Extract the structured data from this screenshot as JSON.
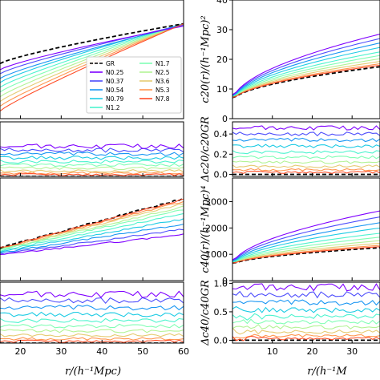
{
  "chart_data": {
    "type": "line",
    "panels": [
      {
        "id": "xi0",
        "column": "left",
        "xlim": [
          15,
          60
        ],
        "ylim": [
          0,
          1
        ],
        "yticks": [],
        "ylabel": ""
      },
      {
        "id": "xi0_ratio",
        "column": "left",
        "xlim": [
          15,
          60
        ],
        "ylim": [
          0,
          1
        ],
        "yticks": [],
        "ylabel": ""
      },
      {
        "id": "xi2",
        "column": "left",
        "xlim": [
          15,
          60
        ],
        "ylim": [
          0,
          1
        ],
        "yticks": [],
        "ylabel": ""
      },
      {
        "id": "xi2_ratio",
        "column": "left",
        "xlim": [
          15,
          60
        ],
        "ylim": [
          0,
          1
        ],
        "yticks": [],
        "ylabel": ""
      },
      {
        "id": "c20",
        "column": "right",
        "xlim": [
          0,
          37
        ],
        "ylim": [
          0,
          40
        ],
        "yticks": [
          "0",
          "10",
          "20",
          "30",
          "40"
        ],
        "ylabel": "c20(r)/(h⁻¹Mpc)²"
      },
      {
        "id": "c20_ratio",
        "column": "right",
        "xlim": [
          0,
          37
        ],
        "ylim": [
          -0.02,
          0.52
        ],
        "yticks": [
          "0.0",
          "0.2",
          "0.4"
        ],
        "ylabel": "Δc20/c20GR"
      },
      {
        "id": "c40",
        "column": "right",
        "xlim": [
          0,
          37
        ],
        "ylim": [
          0,
          3900
        ],
        "yticks": [
          "0",
          "1000",
          "2000",
          "3000"
        ],
        "ylabel": "c40(r)/(h⁻¹Mpc)⁴"
      },
      {
        "id": "c40_ratio",
        "column": "right",
        "xlim": [
          0,
          37
        ],
        "ylim": [
          -0.05,
          1.02
        ],
        "yticks": [
          "0.0",
          "0.5",
          "1.0"
        ],
        "ylabel": "Δc40/c40GR"
      }
    ],
    "x_ticks_left": [
      "20",
      "30",
      "40",
      "50",
      "60"
    ],
    "x_ticks_right": [
      "10",
      "20",
      "30"
    ],
    "xlabel_left": "r/(h⁻¹Mpc)",
    "xlabel_right": "r/(h⁻¹M",
    "legend": {
      "placement": "top-panel-left-column-right",
      "entries": [
        "GR",
        "N0.25",
        "N0.37",
        "N0.54",
        "N0.79",
        "N1.2",
        "N1.7",
        "N2.5",
        "N3.6",
        "N5.3",
        "N7.8"
      ]
    },
    "series": [
      {
        "name": "GR",
        "color": "#000000",
        "dashed": true,
        "xi0_end": 0.8,
        "xi0_ratio": 0.0,
        "xi2_end": 0.8,
        "xi2_ratio": 0.0,
        "c20_end": 17.5,
        "c20_ratio": 0.0,
        "c40_end": 1250,
        "c40_ratio": 0.0
      },
      {
        "name": "N0.25",
        "color": "#7f00ff",
        "dashed": false,
        "xi0_end": 0.78,
        "xi0_ratio": 0.55,
        "xi2_end": 0.45,
        "xi2_ratio": 0.8,
        "c20_end": 28.5,
        "c20_ratio": 0.46,
        "c40_end": 2650,
        "c40_ratio": 0.93
      },
      {
        "name": "N0.37",
        "color": "#4d4dfc",
        "dashed": false,
        "xi0_end": 0.79,
        "xi0_ratio": 0.48,
        "xi2_end": 0.5,
        "xi2_ratio": 0.7,
        "c20_end": 27.0,
        "c20_ratio": 0.4,
        "c40_end": 2420,
        "c40_ratio": 0.8
      },
      {
        "name": "N0.54",
        "color": "#1996f3",
        "dashed": false,
        "xi0_end": 0.79,
        "xi0_ratio": 0.41,
        "xi2_end": 0.55,
        "xi2_ratio": 0.58,
        "c20_end": 25.5,
        "c20_ratio": 0.34,
        "c40_end": 2200,
        "c40_ratio": 0.66
      },
      {
        "name": "N0.79",
        "color": "#1dcbe4",
        "dashed": false,
        "xi0_end": 0.8,
        "xi0_ratio": 0.34,
        "xi2_end": 0.6,
        "xi2_ratio": 0.47,
        "c20_end": 24.0,
        "c20_ratio": 0.28,
        "c40_end": 2000,
        "c40_ratio": 0.53
      },
      {
        "name": "N1.2",
        "color": "#4df3ce",
        "dashed": false,
        "xi0_end": 0.8,
        "xi0_ratio": 0.27,
        "xi2_end": 0.65,
        "xi2_ratio": 0.37,
        "c20_end": 22.5,
        "c20_ratio": 0.22,
        "c40_end": 1800,
        "c40_ratio": 0.42
      },
      {
        "name": "N1.7",
        "color": "#81feb5",
        "dashed": false,
        "xi0_end": 0.8,
        "xi0_ratio": 0.21,
        "xi2_end": 0.69,
        "xi2_ratio": 0.28,
        "c20_end": 21.3,
        "c20_ratio": 0.17,
        "c40_end": 1650,
        "c40_ratio": 0.32
      },
      {
        "name": "N2.5",
        "color": "#b3f396",
        "dashed": false,
        "xi0_end": 0.8,
        "xi0_ratio": 0.15,
        "xi2_end": 0.72,
        "xi2_ratio": 0.2,
        "c20_end": 20.2,
        "c20_ratio": 0.12,
        "c40_end": 1520,
        "c40_ratio": 0.23
      },
      {
        "name": "N3.6",
        "color": "#e6cb73",
        "dashed": false,
        "xi0_end": 0.8,
        "xi0_ratio": 0.1,
        "xi2_end": 0.75,
        "xi2_ratio": 0.13,
        "c20_end": 19.3,
        "c20_ratio": 0.08,
        "c40_end": 1420,
        "c40_ratio": 0.15
      },
      {
        "name": "N5.3",
        "color": "#ff964f",
        "dashed": false,
        "xi0_end": 0.8,
        "xi0_ratio": 0.06,
        "xi2_end": 0.77,
        "xi2_ratio": 0.07,
        "c20_end": 18.5,
        "c20_ratio": 0.045,
        "c40_end": 1340,
        "c40_ratio": 0.08
      },
      {
        "name": "N7.8",
        "color": "#ff4d27",
        "dashed": false,
        "xi0_end": 0.8,
        "xi0_ratio": 0.03,
        "xi2_end": 0.79,
        "xi2_ratio": 0.03,
        "c20_end": 18.0,
        "c20_ratio": 0.02,
        "c40_end": 1290,
        "c40_ratio": 0.03
      }
    ]
  }
}
